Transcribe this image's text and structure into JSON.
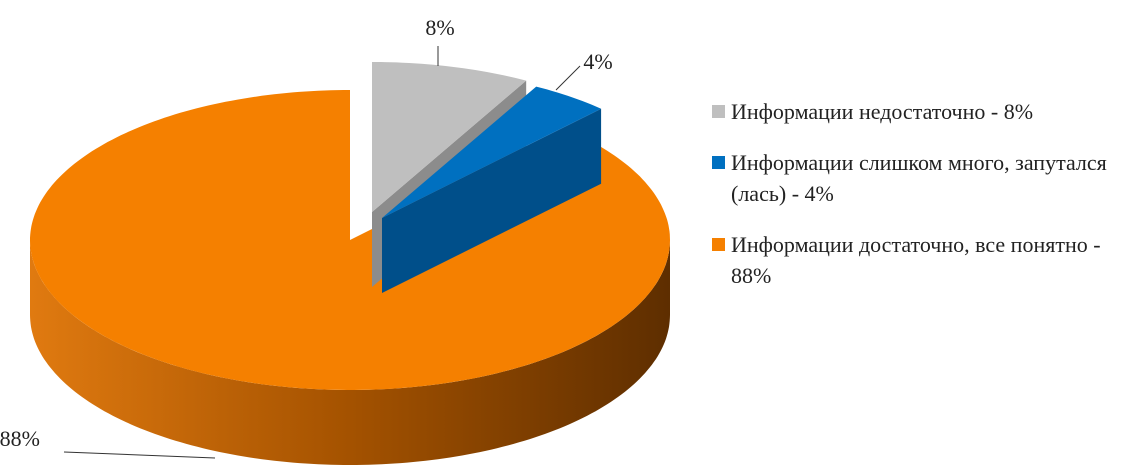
{
  "chart_data": {
    "type": "pie",
    "categories": [
      "Информации недостаточно - 8%",
      "Информации слишком много, запутался (лась) - 4%",
      "Информации достаточно, все понятно - 88%"
    ],
    "values": [
      8,
      4,
      88
    ],
    "value_labels": [
      "8%",
      "4%",
      "88%"
    ],
    "colors": [
      "#bfbfbf",
      "#0070c0",
      "#f58000"
    ],
    "legend": "right"
  }
}
